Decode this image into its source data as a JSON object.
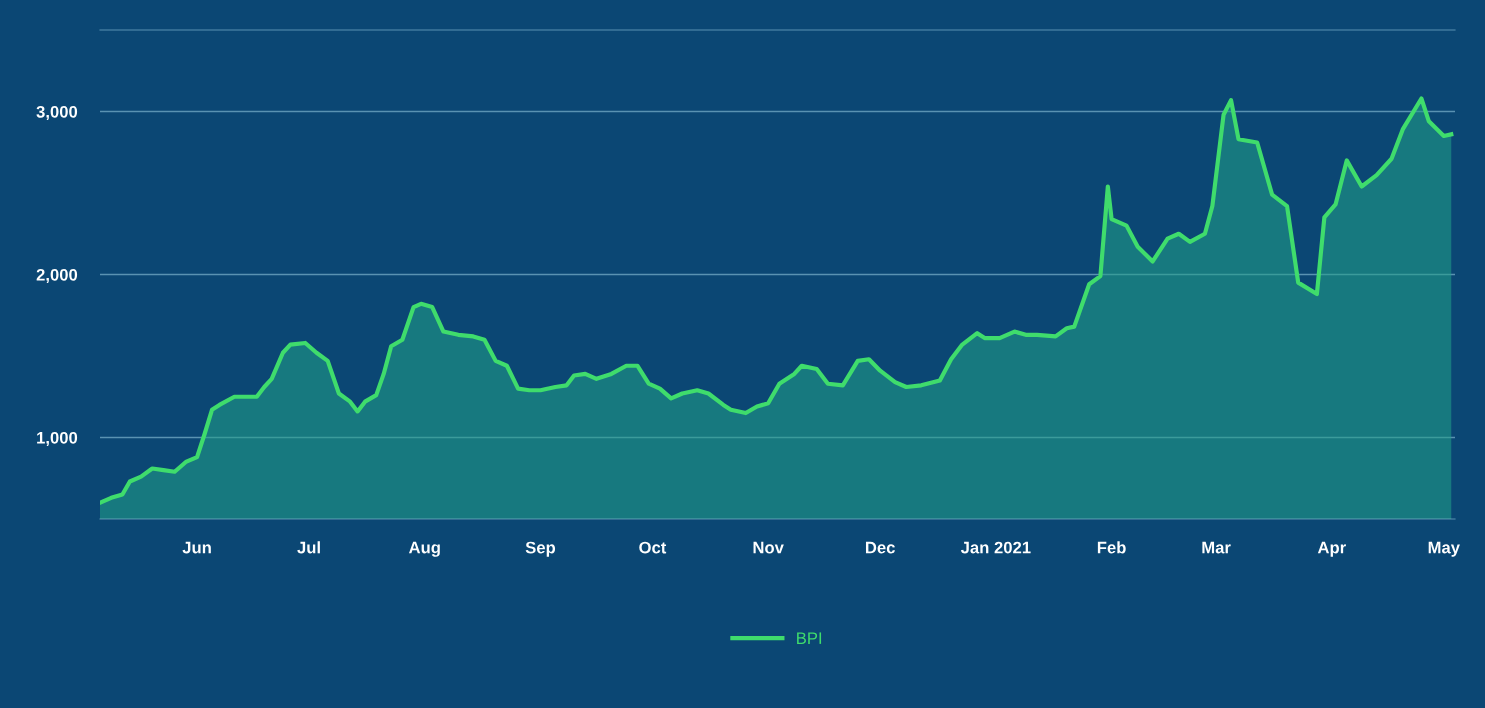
{
  "chart_data": {
    "type": "area",
    "x": [
      "2020-05-06",
      "2020-05-09",
      "2020-05-12",
      "2020-05-14",
      "2020-05-17",
      "2020-05-20",
      "2020-05-23",
      "2020-05-26",
      "2020-05-29",
      "2020-06-01",
      "2020-06-03",
      "2020-06-05",
      "2020-06-07",
      "2020-06-11",
      "2020-06-17",
      "2020-06-19",
      "2020-06-21",
      "2020-06-24",
      "2020-06-26",
      "2020-06-30",
      "2020-07-03",
      "2020-07-06",
      "2020-07-09",
      "2020-07-12",
      "2020-07-14",
      "2020-07-16",
      "2020-07-19",
      "2020-07-21",
      "2020-07-23",
      "2020-07-26",
      "2020-07-29",
      "2020-07-31",
      "2020-08-03",
      "2020-08-06",
      "2020-08-10",
      "2020-08-14",
      "2020-08-17",
      "2020-08-20",
      "2020-08-23",
      "2020-08-26",
      "2020-08-29",
      "2020-09-01",
      "2020-09-05",
      "2020-09-08",
      "2020-09-10",
      "2020-09-13",
      "2020-09-16",
      "2020-09-20",
      "2020-09-24",
      "2020-09-27",
      "2020-09-30",
      "2020-10-03",
      "2020-10-06",
      "2020-10-09",
      "2020-10-13",
      "2020-10-16",
      "2020-10-20",
      "2020-10-22",
      "2020-10-26",
      "2020-10-29",
      "2020-11-01",
      "2020-11-04",
      "2020-11-08",
      "2020-11-10",
      "2020-11-14",
      "2020-11-17",
      "2020-11-21",
      "2020-11-25",
      "2020-11-28",
      "2020-12-01",
      "2020-12-05",
      "2020-12-08",
      "2020-12-12",
      "2020-12-17",
      "2020-12-20",
      "2020-12-23",
      "2020-12-27",
      "2020-12-29",
      "2021-01-02",
      "2021-01-06",
      "2021-01-09",
      "2021-01-12",
      "2021-01-17",
      "2021-01-20",
      "2021-01-22",
      "2021-01-26",
      "2021-01-29",
      "2021-01-31",
      "2021-02-01",
      "2021-02-05",
      "2021-02-08",
      "2021-02-12",
      "2021-02-16",
      "2021-02-19",
      "2021-02-22",
      "2021-02-26",
      "2021-02-28",
      "2021-03-03",
      "2021-03-05",
      "2021-03-07",
      "2021-03-12",
      "2021-03-16",
      "2021-03-20",
      "2021-03-23",
      "2021-03-28",
      "2021-03-30",
      "2021-04-02",
      "2021-04-05",
      "2021-04-09",
      "2021-04-13",
      "2021-04-17",
      "2021-04-20",
      "2021-04-25",
      "2021-04-27",
      "2021-05-01",
      "2021-05-03"
    ],
    "series": [
      {
        "name": "BPI",
        "color": "#3fdc6c",
        "values": [
          600,
          630,
          650,
          730,
          760,
          810,
          800,
          790,
          850,
          880,
          1020,
          1170,
          1200,
          1250,
          1250,
          1310,
          1360,
          1520,
          1570,
          1580,
          1520,
          1470,
          1270,
          1220,
          1160,
          1220,
          1260,
          1390,
          1560,
          1600,
          1800,
          1820,
          1800,
          1650,
          1630,
          1620,
          1600,
          1470,
          1440,
          1300,
          1290,
          1290,
          1310,
          1320,
          1380,
          1390,
          1360,
          1390,
          1440,
          1440,
          1330,
          1300,
          1240,
          1270,
          1290,
          1270,
          1200,
          1170,
          1150,
          1190,
          1210,
          1330,
          1390,
          1440,
          1420,
          1330,
          1320,
          1470,
          1480,
          1410,
          1340,
          1310,
          1320,
          1350,
          1480,
          1570,
          1640,
          1610,
          1610,
          1650,
          1630,
          1630,
          1620,
          1670,
          1680,
          1940,
          1990,
          2540,
          2340,
          2300,
          2170,
          2080,
          2220,
          2250,
          2200,
          2250,
          2420,
          2980,
          3070,
          2830,
          2810,
          2490,
          2420,
          1950,
          1880,
          2350,
          2430,
          2700,
          2540,
          2610,
          2710,
          2890,
          3080,
          2940,
          2850,
          2860
        ]
      }
    ],
    "xlim": [
      "2020-05-06",
      "2021-05-04"
    ],
    "xticks": [
      {
        "value": "2020-06-01",
        "label": "Jun"
      },
      {
        "value": "2020-07-01",
        "label": "Jul"
      },
      {
        "value": "2020-08-01",
        "label": "Aug"
      },
      {
        "value": "2020-09-01",
        "label": "Sep"
      },
      {
        "value": "2020-10-01",
        "label": "Oct"
      },
      {
        "value": "2020-11-01",
        "label": "Nov"
      },
      {
        "value": "2020-12-01",
        "label": "Dec"
      },
      {
        "value": "2021-01-01",
        "label": "Jan 2021"
      },
      {
        "value": "2021-02-01",
        "label": "Feb"
      },
      {
        "value": "2021-03-01",
        "label": "Mar"
      },
      {
        "value": "2021-04-01",
        "label": "Apr"
      },
      {
        "value": "2021-05-01",
        "label": "May"
      }
    ],
    "ylim": [
      500,
      3500
    ],
    "yticks": [
      {
        "value": 1000,
        "label": "1,000"
      },
      {
        "value": 2000,
        "label": "2,000"
      },
      {
        "value": 3000,
        "label": "3,000"
      }
    ],
    "grid": "y",
    "legend": "bottom"
  }
}
